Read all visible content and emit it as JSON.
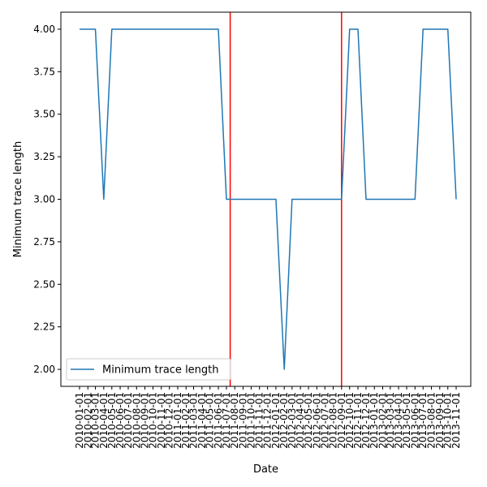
{
  "chart_data": {
    "type": "line",
    "xlabel": "Date",
    "ylabel": "Minimum trace length",
    "ylim": [
      1.9,
      4.1
    ],
    "yticks": [
      "2.00",
      "2.25",
      "2.50",
      "2.75",
      "3.00",
      "3.25",
      "3.50",
      "3.75",
      "4.00"
    ],
    "x": [
      "2010-01-01",
      "2010-02-01",
      "2010-03-01",
      "2010-04-01",
      "2010-05-01",
      "2010-06-01",
      "2010-07-01",
      "2010-08-01",
      "2010-09-01",
      "2010-10-01",
      "2010-11-01",
      "2010-12-01",
      "2011-01-01",
      "2011-02-01",
      "2011-03-01",
      "2011-04-01",
      "2011-05-01",
      "2011-06-01",
      "2011-07-01",
      "2011-08-01",
      "2011-09-01",
      "2011-10-01",
      "2011-11-01",
      "2011-12-01",
      "2012-01-01",
      "2012-02-01",
      "2012-03-01",
      "2012-04-01",
      "2012-05-01",
      "2012-06-01",
      "2012-07-01",
      "2012-08-01",
      "2012-09-01",
      "2012-10-01",
      "2012-11-01",
      "2012-12-01",
      "2013-01-01",
      "2013-02-01",
      "2013-03-01",
      "2013-04-01",
      "2013-05-01",
      "2013-06-01",
      "2013-07-01",
      "2013-08-01",
      "2013-09-01",
      "2013-10-01",
      "2013-11-01"
    ],
    "series": [
      {
        "name": "Minimum trace length",
        "color": "#1f77b4",
        "values": [
          4,
          4,
          4,
          3,
          4,
          4,
          4,
          4,
          4,
          4,
          4,
          4,
          4,
          4,
          4,
          4,
          4,
          4,
          3,
          3,
          3,
          3,
          3,
          3,
          3,
          2,
          3,
          3,
          3,
          3,
          3,
          3,
          3,
          4,
          4,
          3,
          3,
          3,
          3,
          3,
          3,
          3,
          4,
          4,
          4,
          4,
          3
        ]
      }
    ],
    "vlines": [
      {
        "x": "2011-07-15",
        "color": "#ff0000"
      },
      {
        "x": "2012-09-01",
        "color": "#ff0000"
      }
    ],
    "legend": {
      "position": "lower-left",
      "entries": [
        "Minimum trace length"
      ]
    },
    "grid": false
  }
}
